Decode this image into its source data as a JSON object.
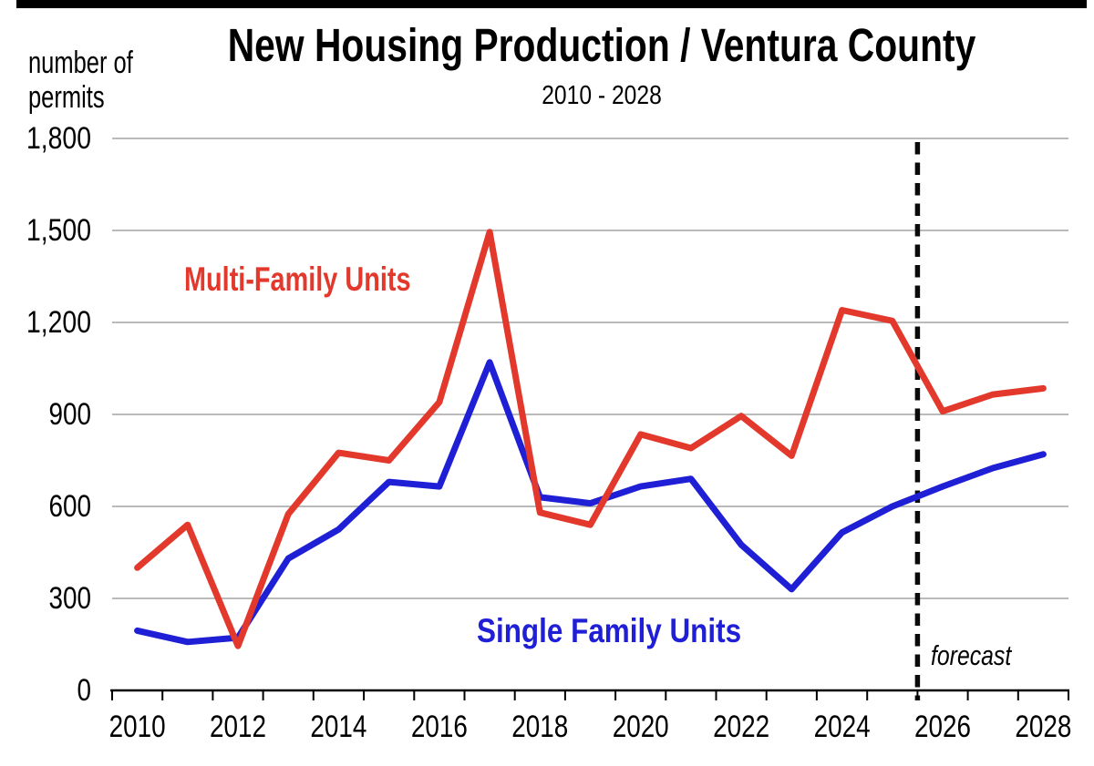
{
  "chart_data": {
    "type": "line",
    "title": "New Housing Production / Ventura County",
    "subtitle": "2010 - 2028",
    "ylabel": "number of permits",
    "ylabel_lines": [
      "number of",
      "permits"
    ],
    "x": [
      2010,
      2011,
      2012,
      2013,
      2014,
      2015,
      2016,
      2017,
      2018,
      2019,
      2020,
      2021,
      2022,
      2023,
      2024,
      2025,
      2026,
      2027,
      2028
    ],
    "x_tick_labels": [
      "2010",
      "2012",
      "2014",
      "2016",
      "2018",
      "2020",
      "2022",
      "2024",
      "2026",
      "2028"
    ],
    "y_ticks": [
      0,
      300,
      600,
      900,
      1200,
      1500,
      1800
    ],
    "y_tick_labels": [
      "0",
      "300",
      "600",
      "900",
      "1,200",
      "1,500",
      "1,800"
    ],
    "ylim": [
      0,
      1800
    ],
    "grid": "horizontal",
    "legend_position": "inline-annotations",
    "series": [
      {
        "name": "Multi-Family Units",
        "color": "#e2392c",
        "values": [
          400,
          540,
          145,
          575,
          775,
          750,
          940,
          1495,
          580,
          540,
          835,
          790,
          895,
          765,
          1240,
          1205,
          910,
          965,
          985
        ]
      },
      {
        "name": "Single Family Units",
        "color": "#1f1fd6",
        "values": [
          195,
          158,
          172,
          430,
          525,
          680,
          665,
          1070,
          630,
          610,
          665,
          690,
          475,
          330,
          515,
          600,
          665,
          725,
          770
        ]
      }
    ],
    "forecast_label": "forecast",
    "forecast_start_year": 2026,
    "colors": {
      "gridline": "#a3a3a3",
      "axis": "#000000",
      "forecast_divider": "#0a0a0a"
    }
  }
}
